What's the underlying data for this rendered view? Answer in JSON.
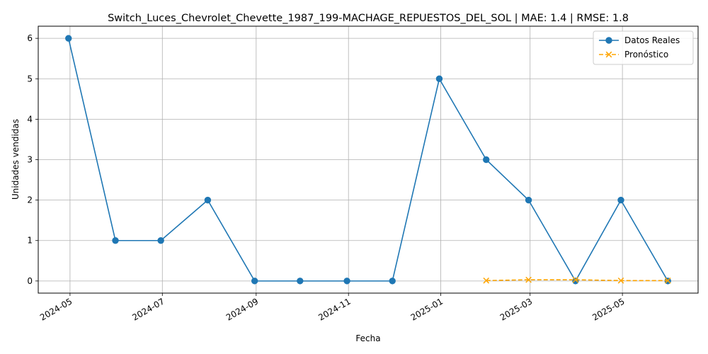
{
  "chart_data": {
    "type": "line",
    "title": "Switch_Luces_Chevrolet_Chevette_1987_199-MACHAGE_REPUESTOS_DEL_SOL | MAE: 1.4 | RMSE: 1.8",
    "xlabel": "Fecha",
    "ylabel": "Unidades vendidas",
    "x_tick_labels": [
      "2024-05",
      "2024-07",
      "2024-09",
      "2024-11",
      "2025-01",
      "2025-03",
      "2025-05"
    ],
    "y_tick_labels": [
      "0",
      "1",
      "2",
      "3",
      "4",
      "5",
      "6"
    ],
    "ylim": [
      -0.3,
      6.3
    ],
    "xlim": [
      "2024-04-10",
      "2025-06-20"
    ],
    "grid": true,
    "legend_position": "top-right",
    "series": [
      {
        "name": "Datos Reales",
        "color": "#1f77b4",
        "style": "solid",
        "marker": "circle",
        "points": [
          {
            "x": "2024-04-30",
            "y": 6
          },
          {
            "x": "2024-05-31",
            "y": 1
          },
          {
            "x": "2024-06-30",
            "y": 1
          },
          {
            "x": "2024-07-31",
            "y": 2
          },
          {
            "x": "2024-08-31",
            "y": 0
          },
          {
            "x": "2024-09-30",
            "y": 0
          },
          {
            "x": "2024-10-31",
            "y": 0
          },
          {
            "x": "2024-11-30",
            "y": 0
          },
          {
            "x": "2024-12-31",
            "y": 5
          },
          {
            "x": "2025-01-31",
            "y": 3
          },
          {
            "x": "2025-02-28",
            "y": 2
          },
          {
            "x": "2025-03-31",
            "y": 0
          },
          {
            "x": "2025-04-30",
            "y": 2
          },
          {
            "x": "2025-05-31",
            "y": 0
          }
        ]
      },
      {
        "name": "Pronóstico",
        "color": "#ffa500",
        "style": "dashed",
        "marker": "x",
        "points": [
          {
            "x": "2025-01-31",
            "y": 0.01
          },
          {
            "x": "2025-02-28",
            "y": 0.03
          },
          {
            "x": "2025-03-31",
            "y": 0.03
          },
          {
            "x": "2025-04-30",
            "y": 0.01
          },
          {
            "x": "2025-05-31",
            "y": 0.01
          }
        ]
      }
    ]
  }
}
